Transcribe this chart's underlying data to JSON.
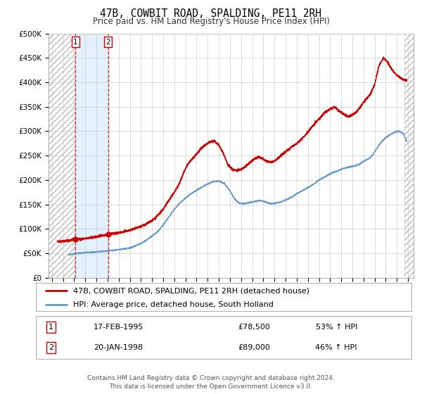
{
  "title": "47B, COWBIT ROAD, SPALDING, PE11 2RH",
  "subtitle": "Price paid vs. HM Land Registry's House Price Index (HPI)",
  "ylim": [
    0,
    500000
  ],
  "xlim_start": 1992.7,
  "xlim_end": 2025.5,
  "yticks": [
    0,
    50000,
    100000,
    150000,
    200000,
    250000,
    300000,
    350000,
    400000,
    450000,
    500000
  ],
  "ytick_labels": [
    "£0",
    "£50K",
    "£100K",
    "£150K",
    "£200K",
    "£250K",
    "£300K",
    "£350K",
    "£400K",
    "£450K",
    "£500K"
  ],
  "xticks": [
    1993,
    1994,
    1995,
    1996,
    1997,
    1998,
    1999,
    2000,
    2001,
    2002,
    2003,
    2004,
    2005,
    2006,
    2007,
    2008,
    2009,
    2010,
    2011,
    2012,
    2013,
    2014,
    2015,
    2016,
    2017,
    2018,
    2019,
    2020,
    2021,
    2022,
    2023,
    2024,
    2025
  ],
  "transaction1_date": 1995.12,
  "transaction1_price": 78500,
  "transaction2_date": 1998.055,
  "transaction2_price": 89000,
  "transaction1_text": "17-FEB-1995",
  "transaction1_price_str": "£78,500",
  "transaction1_hpi": "53% ↑ HPI",
  "transaction2_text": "20-JAN-1998",
  "transaction2_price_str": "£89,000",
  "transaction2_hpi": "46% ↑ HPI",
  "line1_color": "#cc0000",
  "line2_color": "#6699cc",
  "bg_color": "#ffffff",
  "grid_color": "#cccccc",
  "shaded_color": "#ddeeff",
  "legend1_label": "47B, COWBIT ROAD, SPALDING, PE11 2RH (detached house)",
  "legend2_label": "HPI: Average price, detached house, South Holland",
  "footnote": "Contains HM Land Registry data © Crown copyright and database right 2024.\nThis data is licensed under the Open Government Licence v3.0.",
  "title_fontsize": 10.5,
  "subtitle_fontsize": 8.5,
  "tick_fontsize": 7.5,
  "legend_fontsize": 8,
  "table_fontsize": 8,
  "footnote_fontsize": 6.5
}
